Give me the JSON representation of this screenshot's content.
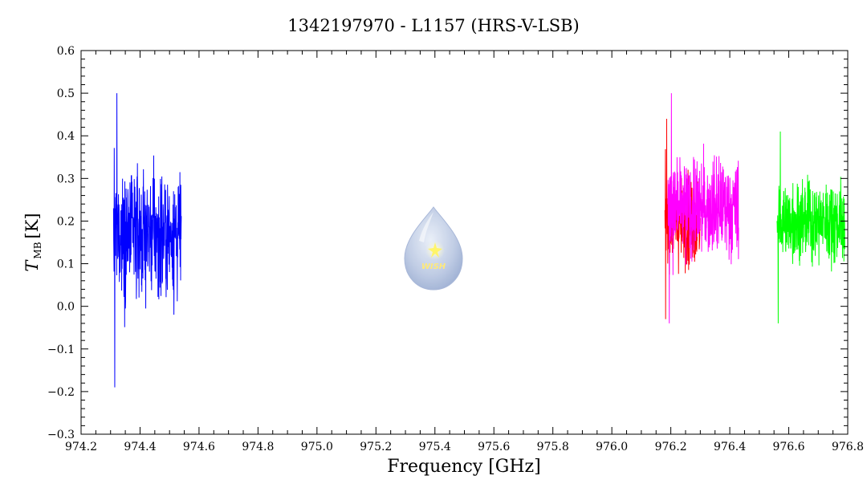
{
  "chart_data": {
    "type": "line",
    "title": "1342197970 - L1157 (HRS-V-LSB)",
    "xlabel": "Frequency [GHz]",
    "ylabel_main": "T",
    "ylabel_sub": "MB",
    "ylabel_unit": "[K]",
    "xlim": [
      974.2,
      976.8
    ],
    "ylim": [
      -0.3,
      0.6
    ],
    "xticks": [
      974.2,
      974.4,
      974.6,
      974.8,
      975.0,
      975.2,
      975.4,
      975.6,
      975.8,
      976.0,
      976.2,
      976.4,
      976.6,
      976.8
    ],
    "xtick_labels": [
      "974.2",
      "974.4",
      "974.6",
      "974.8",
      "975.0",
      "975.2",
      "975.4",
      "975.6",
      "975.8",
      "976.0",
      "976.2",
      "976.4",
      "976.6",
      "976.8"
    ],
    "yticks": [
      -0.3,
      -0.2,
      -0.1,
      0.0,
      0.1,
      0.2,
      0.3,
      0.4,
      0.5,
      0.6
    ],
    "ytick_labels": [
      "−0.3",
      "−0.2",
      "−0.1",
      "0.0",
      "0.1",
      "0.2",
      "0.3",
      "0.4",
      "0.5",
      "0.6"
    ],
    "grid": false,
    "series": [
      {
        "color": "#0000ff",
        "x_range": [
          974.31,
          974.54
        ],
        "baseline": 0.17,
        "min": -0.19,
        "max": 0.5
      },
      {
        "color": "#ff0000",
        "x_range": [
          976.18,
          976.3
        ],
        "baseline": 0.2,
        "min": -0.03,
        "max": 0.44
      },
      {
        "color": "#ff00ff",
        "x_range": [
          976.19,
          976.43
        ],
        "baseline": 0.23,
        "min": -0.04,
        "max": 0.5
      },
      {
        "color": "#00ff00",
        "x_range": [
          976.56,
          976.79
        ],
        "baseline": 0.2,
        "min": -0.04,
        "max": 0.41
      }
    ],
    "logo_text": "WISH"
  }
}
